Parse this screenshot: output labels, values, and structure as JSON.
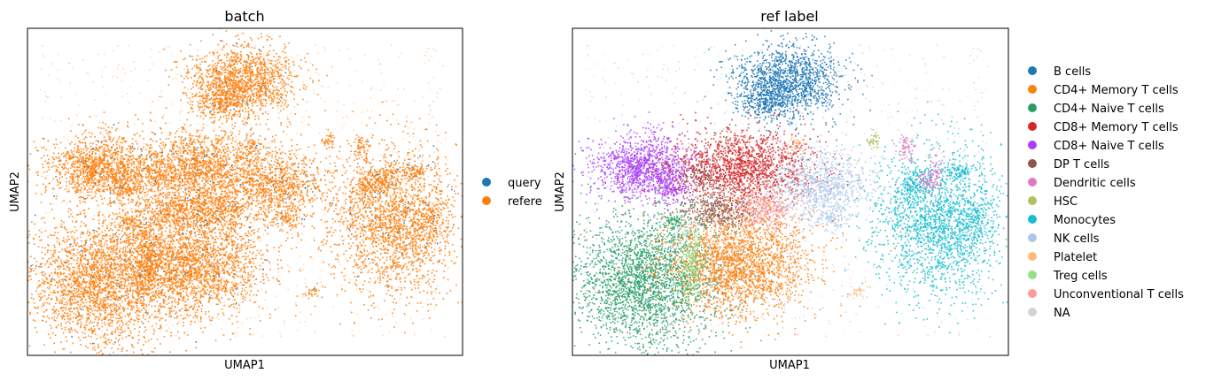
{
  "chart_data": [
    {
      "type": "scatter",
      "title": "batch",
      "xlabel": "UMAP1",
      "ylabel": "UMAP2",
      "grid": false,
      "legend_placement": "right",
      "x_ticks": [],
      "y_ticks": [],
      "series": [
        {
          "name": "query",
          "color": "#1f77b4"
        },
        {
          "name": "refere",
          "color": "#ff7f0e"
        }
      ]
    },
    {
      "type": "scatter",
      "title": "ref label",
      "xlabel": "UMAP1",
      "ylabel": "UMAP2",
      "grid": false,
      "legend_placement": "right",
      "x_ticks": [],
      "y_ticks": [],
      "series": [
        {
          "name": "B cells",
          "color": "#1f77b4"
        },
        {
          "name": "CD4+ Memory T cells",
          "color": "#ff7f0e"
        },
        {
          "name": "CD4+ Naive T cells",
          "color": "#279e68"
        },
        {
          "name": "CD8+ Memory T cells",
          "color": "#d62728"
        },
        {
          "name": "CD8+ Naive T cells",
          "color": "#aa40fc"
        },
        {
          "name": "DP T cells",
          "color": "#8c564b"
        },
        {
          "name": "Dendritic cells",
          "color": "#e377c2"
        },
        {
          "name": "HSC",
          "color": "#b5bd61"
        },
        {
          "name": "Monocytes",
          "color": "#17becf"
        },
        {
          "name": "NK cells",
          "color": "#aec7e8"
        },
        {
          "name": "Platelet",
          "color": "#ffbb78"
        },
        {
          "name": "Treg cells",
          "color": "#98df8a"
        },
        {
          "name": "Unconventional T cells",
          "color": "#ff9896"
        },
        {
          "name": "NA",
          "color": "#d3d3d3"
        }
      ]
    }
  ]
}
